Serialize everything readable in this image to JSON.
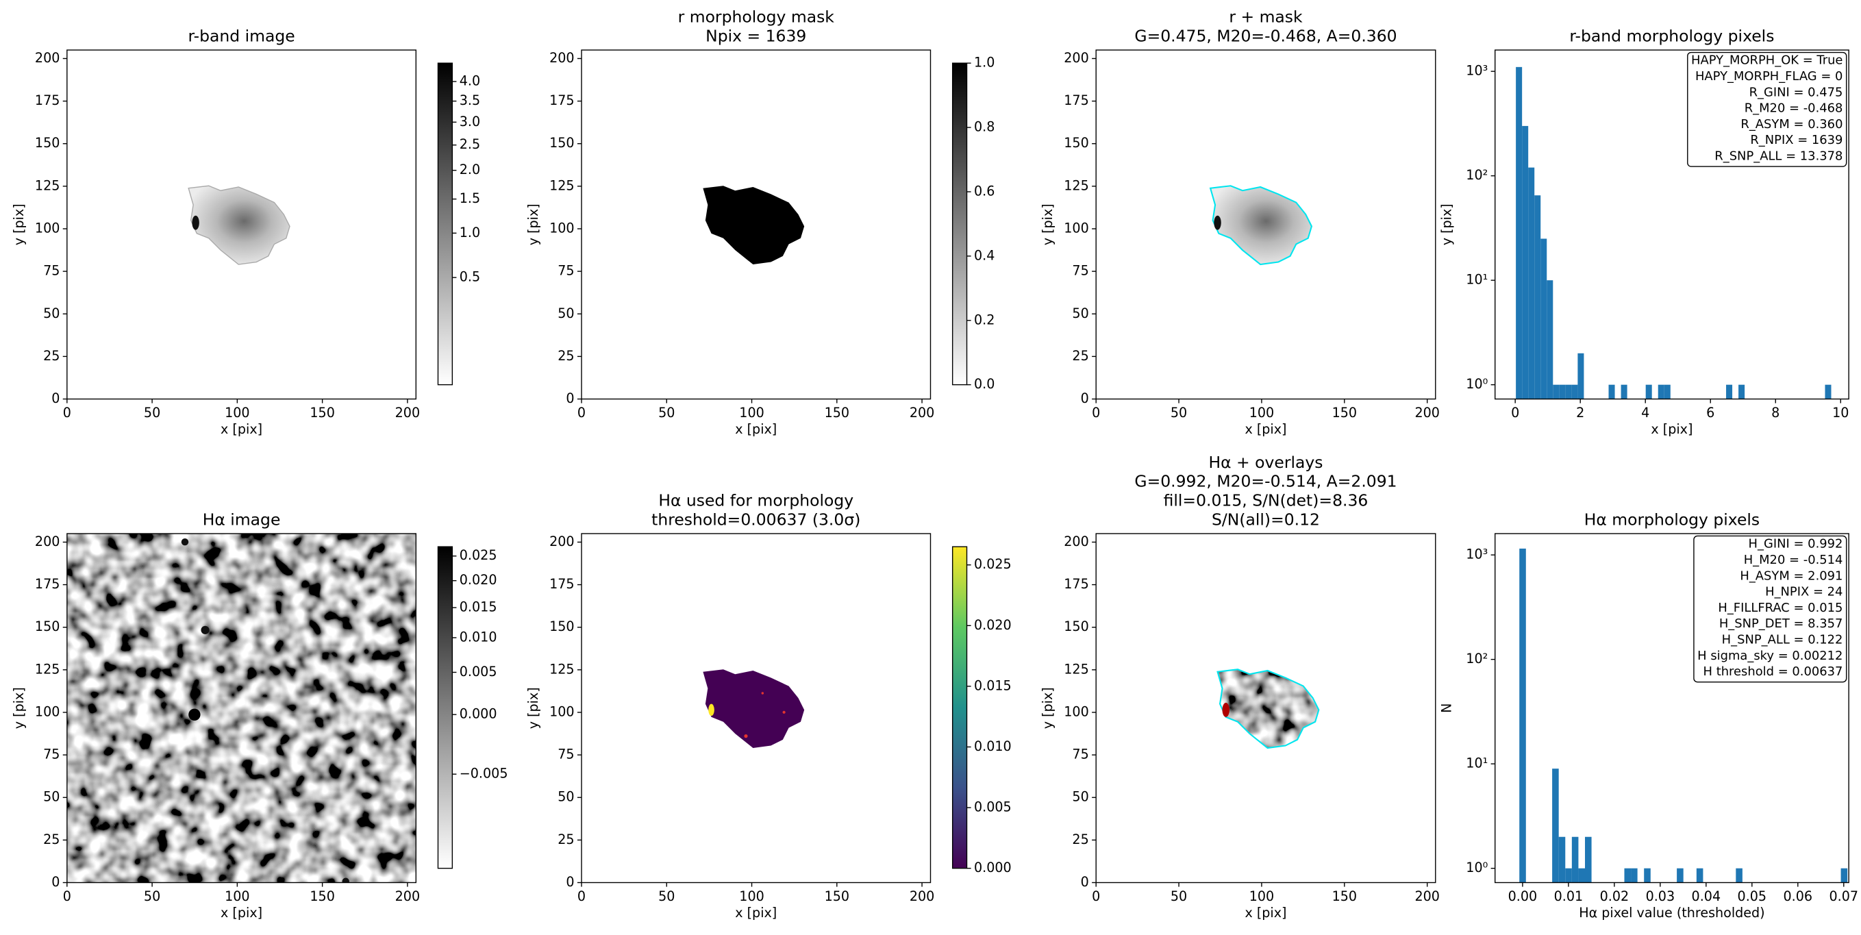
{
  "chart_data": [
    {
      "type": "image",
      "title": [
        "r-band image"
      ],
      "xlabel": "x [pix]",
      "ylabel": "y [pix]",
      "xlim": [
        0,
        205
      ],
      "ylim": [
        0,
        205
      ],
      "xticks": [
        0,
        50,
        100,
        150,
        200
      ],
      "yticks": [
        0,
        25,
        50,
        75,
        100,
        125,
        150,
        175,
        200
      ],
      "colorbar": {
        "cmap": "gray_r",
        "scale": "sqrt",
        "clim": [
          0,
          4.5
        ],
        "ticks": [
          0.5,
          {
            "value": 1,
            "label": "1.0"
          },
          1.5,
          {
            "value": 2,
            "label": "2.0"
          },
          2.5,
          {
            "value": 3,
            "label": "3.0"
          },
          3.5,
          {
            "value": 4,
            "label": "4.0"
          }
        ]
      }
    },
    {
      "type": "image",
      "title": [
        "r morphology mask",
        "Npix = 1639"
      ],
      "xlabel": "x [pix]",
      "ylabel": "y [pix]",
      "xlim": [
        0,
        205
      ],
      "ylim": [
        0,
        205
      ],
      "xticks": [
        0,
        50,
        100,
        150,
        200
      ],
      "yticks": [
        0,
        25,
        50,
        75,
        100,
        125,
        150,
        175,
        200
      ],
      "colorbar": {
        "cmap": "gray_r",
        "scale": "linear",
        "clim": [
          0,
          1
        ],
        "ticks": [
          {
            "value": 0,
            "label": "0.0"
          },
          0.2,
          0.4,
          0.6,
          0.8,
          {
            "value": 1,
            "label": "1.0"
          }
        ]
      }
    },
    {
      "type": "image",
      "title": [
        "r + mask",
        "G=0.475, M20=-0.468, A=0.360"
      ],
      "xlabel": "x [pix]",
      "ylabel": "y [pix]",
      "xlim": [
        0,
        205
      ],
      "ylim": [
        0,
        205
      ],
      "xticks": [
        0,
        50,
        100,
        150,
        200
      ],
      "yticks": [
        0,
        25,
        50,
        75,
        100,
        125,
        150,
        175,
        200
      ]
    },
    {
      "type": "histogram",
      "title": [
        "r-band morphology pixels"
      ],
      "xlabel": "x [pix]",
      "ylabel": "y [pix]",
      "color": "#1f77b4",
      "log_y": true,
      "xlim": [
        -0.62,
        10.25
      ],
      "ylim": [
        0.73,
        1600
      ],
      "xticks": [
        0,
        2,
        4,
        6,
        8,
        10
      ],
      "yticks": [
        {
          "value": 1,
          "label": "10⁰"
        },
        {
          "value": 10,
          "label": "10¹"
        },
        {
          "value": 100,
          "label": "10²"
        },
        {
          "value": 1000,
          "label": "10³"
        }
      ],
      "bins": [
        0.02,
        0.21,
        0.4,
        0.59,
        0.78,
        0.97,
        1.16,
        1.35,
        1.54,
        1.73,
        1.92,
        2.11,
        2.3,
        2.49,
        2.68,
        2.87,
        3.06,
        3.25,
        3.44,
        3.63,
        3.82,
        4.01,
        4.2,
        4.39,
        4.58,
        4.77,
        4.96,
        5.15,
        5.34,
        5.53,
        5.72,
        5.91,
        6.1,
        6.29,
        6.48,
        6.67,
        6.86,
        7.05,
        7.24,
        7.43,
        7.62,
        7.81,
        8.0,
        8.19,
        8.38,
        8.57,
        8.76,
        8.95,
        9.14,
        9.33,
        9.52,
        9.71
      ],
      "counts": [
        1100,
        300,
        120,
        65,
        25,
        10,
        1,
        1,
        1,
        1,
        2,
        0,
        0,
        0,
        0,
        1,
        0,
        1,
        0,
        0,
        0,
        1,
        0,
        1,
        1,
        0,
        0,
        0,
        0,
        0,
        0,
        0,
        0,
        0,
        1,
        0,
        1,
        0,
        0,
        0,
        0,
        0,
        0,
        0,
        0,
        0,
        0,
        0,
        0,
        0,
        1
      ],
      "annotation_loc": "upper right",
      "annotation": [
        "HAPY_MORPH_OK = True",
        "HAPY_MORPH_FLAG = 0",
        "R_GINI = 0.475",
        "R_M20 = -0.468",
        "R_ASYM = 0.360",
        "R_NPIX = 1639",
        "R_SNP_ALL = 13.378"
      ]
    },
    {
      "type": "image",
      "title": [
        "Hα image"
      ],
      "xlabel": "x [pix]",
      "ylabel": "y [pix]",
      "xlim": [
        0,
        205
      ],
      "ylim": [
        0,
        205
      ],
      "xticks": [
        0,
        50,
        100,
        150,
        200
      ],
      "yticks": [
        0,
        25,
        50,
        75,
        100,
        125,
        150,
        175,
        200
      ],
      "colorbar": {
        "cmap": "gray_r",
        "scale": "sqrt",
        "clim": [
          -0.008,
          0.027
        ],
        "ticks": [
          {
            "value": -0.005,
            "label": "−0.005"
          },
          {
            "value": 0,
            "label": "0.000"
          },
          0.005,
          {
            "value": 0.01,
            "label": "0.010"
          },
          0.015,
          {
            "value": 0.02,
            "label": "0.020"
          },
          0.025
        ]
      }
    },
    {
      "type": "image",
      "title": [
        "Hα used for morphology",
        "threshold=0.00637 (3.0σ)"
      ],
      "xlabel": "x [pix]",
      "ylabel": "y [pix]",
      "xlim": [
        0,
        205
      ],
      "ylim": [
        0,
        205
      ],
      "xticks": [
        0,
        50,
        100,
        150,
        200
      ],
      "yticks": [
        0,
        25,
        50,
        75,
        100,
        125,
        150,
        175,
        200
      ],
      "colorbar": {
        "cmap": "viridis",
        "scale": "linear",
        "clim": [
          0,
          0.0265
        ],
        "ticks": [
          {
            "value": 0,
            "label": "0.000"
          },
          0.005,
          {
            "value": 0.01,
            "label": "0.010"
          },
          0.015,
          {
            "value": 0.02,
            "label": "0.020"
          },
          0.025
        ]
      }
    },
    {
      "type": "image",
      "title": [
        "Hα + overlays",
        "G=0.992, M20=-0.514, A=2.091",
        "fill=0.015, S/N(det)=8.36",
        "S/N(all)=0.12"
      ],
      "xlabel": "x [pix]",
      "ylabel": "y [pix]",
      "xlim": [
        0,
        205
      ],
      "ylim": [
        0,
        205
      ],
      "xticks": [
        0,
        50,
        100,
        150,
        200
      ],
      "yticks": [
        0,
        25,
        50,
        75,
        100,
        125,
        150,
        175,
        200
      ]
    },
    {
      "type": "histogram",
      "title": [
        "Hα morphology pixels"
      ],
      "xlabel": "Hα pixel value (thresholded)",
      "ylabel": "N",
      "color": "#1f77b4",
      "log_y": true,
      "xlim": [
        -0.006,
        0.0711
      ],
      "ylim": [
        0.73,
        1600
      ],
      "xticks": [
        {
          "value": 0,
          "label": "0.00"
        },
        0.01,
        0.02,
        0.03,
        0.04,
        0.05,
        0.06,
        0.07
      ],
      "yticks": [
        {
          "value": 1,
          "label": "10⁰"
        },
        {
          "value": 10,
          "label": "10¹"
        },
        {
          "value": 100,
          "label": "10²"
        },
        {
          "value": 1000,
          "label": "10³"
        }
      ],
      "bins": [
        -0.0007,
        0.00073,
        0.00216,
        0.00359,
        0.00502,
        0.00645,
        0.00788,
        0.00931,
        0.01074,
        0.01217,
        0.0136,
        0.01503,
        0.01646,
        0.01789,
        0.01932,
        0.02075,
        0.02218,
        0.02361,
        0.02504,
        0.02647,
        0.0279,
        0.02933,
        0.03076,
        0.03219,
        0.03362,
        0.03505,
        0.03648,
        0.03791,
        0.03934,
        0.04077,
        0.0422,
        0.04363,
        0.04506,
        0.04649,
        0.04792,
        0.04935,
        0.05078,
        0.05221,
        0.05364,
        0.05507,
        0.0565,
        0.05793,
        0.05936,
        0.06079,
        0.06222,
        0.06365,
        0.06508,
        0.06651,
        0.06794,
        0.06937,
        0.0708
      ],
      "counts": [
        1150,
        0,
        0,
        0,
        0,
        9,
        2,
        1,
        2,
        1,
        2,
        0,
        0,
        0,
        0,
        0,
        1,
        1,
        0,
        1,
        0,
        0,
        0,
        0,
        1,
        0,
        0,
        1,
        0,
        0,
        0,
        0,
        0,
        1,
        0,
        0,
        0,
        0,
        0,
        0,
        0,
        0,
        0,
        0,
        0,
        0,
        0,
        0,
        0,
        1
      ],
      "annotation_loc": "upper right",
      "annotation": [
        "H_GINI = 0.992",
        "H_M20 = -0.514",
        "H_ASYM = 2.091",
        "H_NPIX = 24",
        "H_FILLFRAC = 0.015",
        "H_SNP_DET = 8.357",
        "H_SNP_ALL = 0.122",
        "H sigma_sky = 0.00212",
        "H threshold = 0.00637"
      ]
    }
  ]
}
